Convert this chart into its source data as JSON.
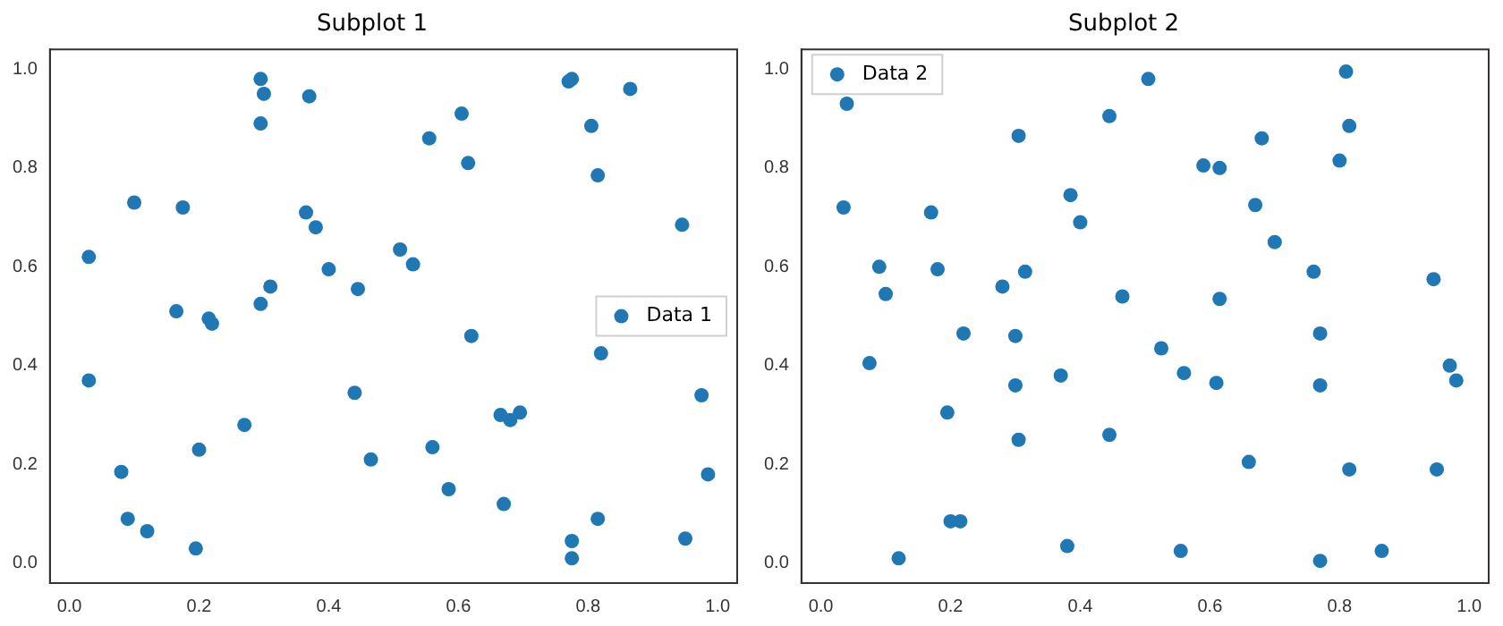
{
  "chart_data": [
    {
      "type": "scatter",
      "title": "Subplot 1",
      "legend": "center right",
      "marker": "circle",
      "xlim": [
        -0.03,
        1.03
      ],
      "ylim": [
        -0.04,
        1.04
      ],
      "xticks": [
        {
          "value": 0,
          "label": "0.0"
        },
        {
          "value": 0.2,
          "label": "0.2"
        },
        {
          "value": 0.4,
          "label": "0.4"
        },
        {
          "value": 0.6,
          "label": "0.6"
        },
        {
          "value": 0.8,
          "label": "0.8"
        },
        {
          "value": 1,
          "label": "1.0"
        }
      ],
      "yticks": [
        {
          "value": 0,
          "label": "0.0"
        },
        {
          "value": 0.2,
          "label": "0.2"
        },
        {
          "value": 0.4,
          "label": "0.4"
        },
        {
          "value": 0.6,
          "label": "0.6"
        },
        {
          "value": 0.8,
          "label": "0.8"
        },
        {
          "value": 1,
          "label": "1.0"
        }
      ],
      "series": [
        {
          "name": "Data 1",
          "color": "#1f77b4",
          "x": [
            0.03,
            0.03,
            0.08,
            0.09,
            0.1,
            0.12,
            0.165,
            0.175,
            0.195,
            0.2,
            0.215,
            0.22,
            0.27,
            0.295,
            0.3,
            0.295,
            0.295,
            0.31,
            0.365,
            0.37,
            0.38,
            0.4,
            0.44,
            0.445,
            0.465,
            0.51,
            0.53,
            0.555,
            0.56,
            0.585,
            0.605,
            0.615,
            0.62,
            0.665,
            0.67,
            0.68,
            0.695,
            0.77,
            0.775,
            0.775,
            0.775,
            0.805,
            0.815,
            0.815,
            0.82,
            0.865,
            0.945,
            0.95,
            0.975,
            0.985
          ],
          "values": [
            0.62,
            0.37,
            0.185,
            0.09,
            0.73,
            0.065,
            0.51,
            0.72,
            0.03,
            0.23,
            0.495,
            0.485,
            0.28,
            0.98,
            0.95,
            0.89,
            0.525,
            0.56,
            0.71,
            0.945,
            0.68,
            0.595,
            0.345,
            0.555,
            0.21,
            0.635,
            0.605,
            0.86,
            0.235,
            0.15,
            0.91,
            0.81,
            0.46,
            0.3,
            0.12,
            0.29,
            0.305,
            0.975,
            0.98,
            0.045,
            0.01,
            0.885,
            0.785,
            0.09,
            0.425,
            0.96,
            0.685,
            0.05,
            0.34,
            0.18
          ]
        }
      ]
    },
    {
      "type": "scatter",
      "title": "Subplot 2",
      "legend": "top left",
      "marker": "circle",
      "xlim": [
        -0.03,
        1.03
      ],
      "ylim": [
        -0.04,
        1.04
      ],
      "xticks": [
        {
          "value": 0,
          "label": "0.0"
        },
        {
          "value": 0.2,
          "label": "0.2"
        },
        {
          "value": 0.4,
          "label": "0.4"
        },
        {
          "value": 0.6,
          "label": "0.6"
        },
        {
          "value": 0.8,
          "label": "0.8"
        },
        {
          "value": 1,
          "label": "1.0"
        }
      ],
      "yticks": [
        {
          "value": 0,
          "label": "0.0"
        },
        {
          "value": 0.2,
          "label": "0.2"
        },
        {
          "value": 0.4,
          "label": "0.4"
        },
        {
          "value": 0.6,
          "label": "0.6"
        },
        {
          "value": 0.8,
          "label": "0.8"
        },
        {
          "value": 1,
          "label": "1.0"
        }
      ],
      "series": [
        {
          "name": "Data 2",
          "color": "#1f77b4",
          "x": [
            0.035,
            0.04,
            0.075,
            0.09,
            0.1,
            0.12,
            0.17,
            0.18,
            0.195,
            0.2,
            0.215,
            0.22,
            0.28,
            0.3,
            0.3,
            0.305,
            0.305,
            0.315,
            0.37,
            0.38,
            0.385,
            0.4,
            0.445,
            0.445,
            0.465,
            0.505,
            0.525,
            0.555,
            0.56,
            0.59,
            0.61,
            0.615,
            0.615,
            0.66,
            0.67,
            0.68,
            0.7,
            0.76,
            0.77,
            0.77,
            0.77,
            0.8,
            0.81,
            0.815,
            0.815,
            0.865,
            0.945,
            0.95,
            0.97,
            0.98
          ],
          "values": [
            0.72,
            0.93,
            0.405,
            0.6,
            0.545,
            0.01,
            0.71,
            0.595,
            0.305,
            0.085,
            0.085,
            0.465,
            0.56,
            0.46,
            0.36,
            0.865,
            0.25,
            0.59,
            0.38,
            0.035,
            0.745,
            0.69,
            0.905,
            0.26,
            0.54,
            0.98,
            0.435,
            0.025,
            0.385,
            0.805,
            0.365,
            0.535,
            0.8,
            0.205,
            0.725,
            0.86,
            0.65,
            0.59,
            0.465,
            0.36,
            0.005,
            0.815,
            0.995,
            0.885,
            0.19,
            0.025,
            0.575,
            0.19,
            0.4,
            0.37
          ]
        }
      ]
    }
  ]
}
